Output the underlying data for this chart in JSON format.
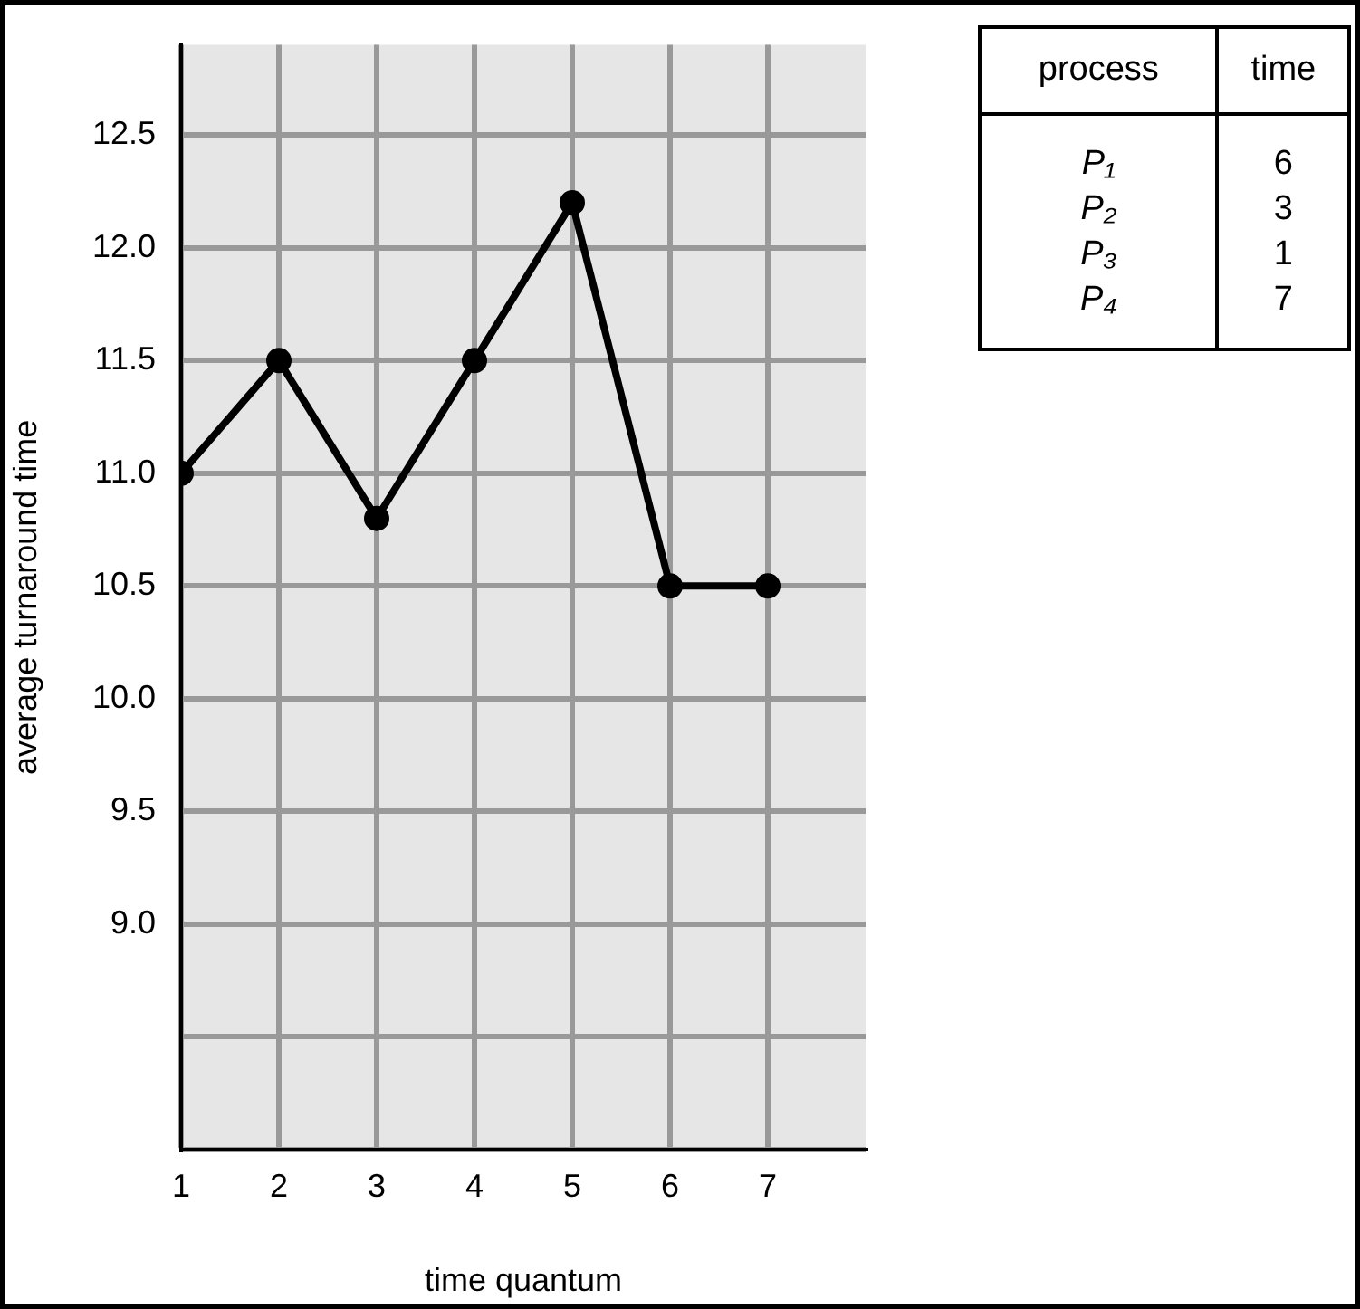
{
  "chart_data": {
    "type": "line",
    "xlabel": "time quantum",
    "ylabel": "average turnaround time",
    "x": [
      1,
      2,
      3,
      4,
      5,
      6,
      7
    ],
    "series": [
      {
        "color": "#000000",
        "values": [
          11.0,
          11.5,
          10.8,
          11.5,
          12.2,
          10.5,
          10.5
        ]
      }
    ],
    "xlim": [
      1,
      8
    ],
    "xticks": [
      1,
      2,
      3,
      4,
      5,
      6,
      7
    ],
    "ylim": [
      8,
      12.9
    ],
    "yticks": [
      {
        "value": 8,
        "label": null
      },
      {
        "value": 8.5,
        "label": null
      },
      {
        "value": 9,
        "label": "9.0"
      },
      {
        "value": 9.5,
        "label": "9.5"
      },
      {
        "value": 10,
        "label": "10.0"
      },
      {
        "value": 10.5,
        "label": "10.5"
      },
      {
        "value": 11,
        "label": "11.0"
      },
      {
        "value": 11.5,
        "label": "11.5"
      },
      {
        "value": 12,
        "label": "12.0"
      },
      {
        "value": 12.5,
        "label": "12.5"
      }
    ],
    "grid": true,
    "legend": false,
    "marker": "circle",
    "line_style": "solid",
    "annotations": [
      "process",
      "time",
      "P₁",
      "6",
      "P₂",
      "3",
      "P₃",
      "1",
      "P₄",
      "7"
    ]
  }
}
